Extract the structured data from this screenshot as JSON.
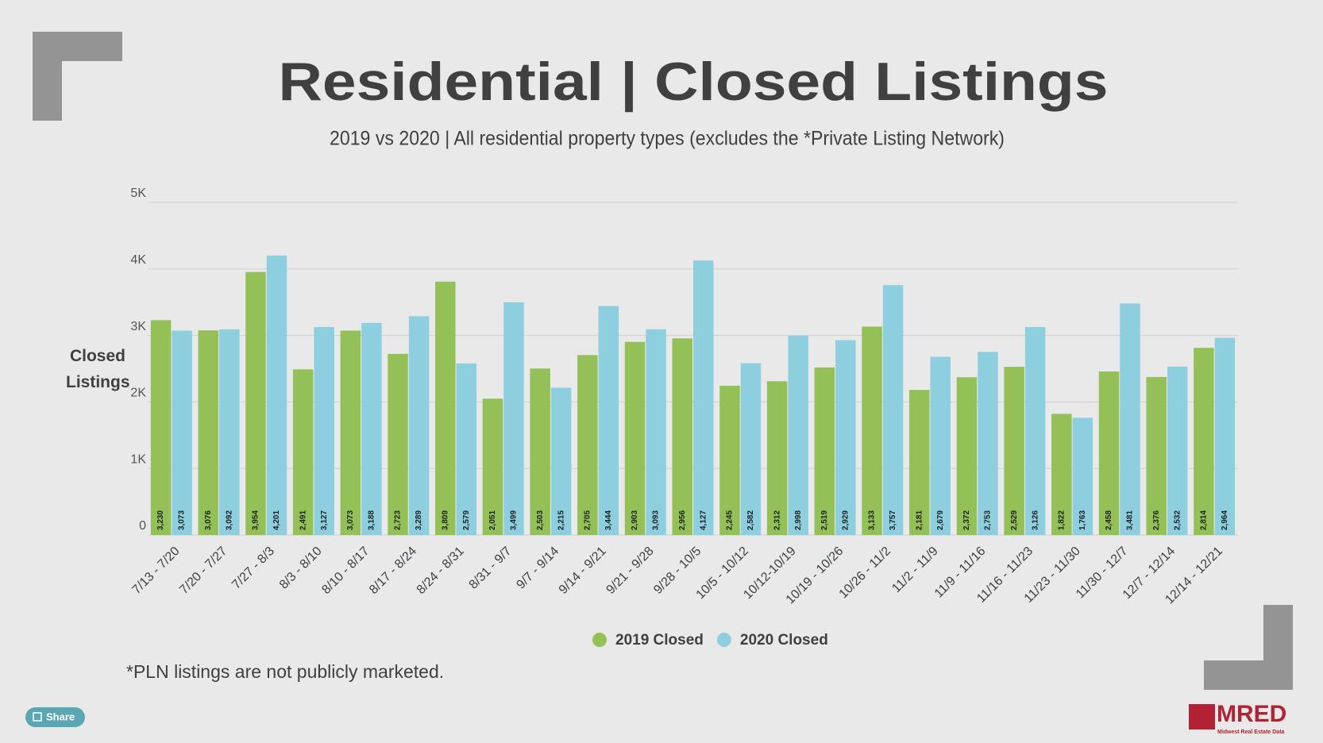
{
  "chart_data": {
    "type": "bar",
    "title": "Residential | Closed Listings",
    "subtitle": "2019 vs 2020 | All residential property types (excludes the *Private Listing Network)",
    "y_label": "Closed Listings",
    "footnote": "*PLN listings are not publicly marketed.",
    "categories": [
      "7/13 - 7/20",
      "7/20 - 7/27",
      "7/27 - 8/3",
      "8/3 - 8/10",
      "8/10 - 8/17",
      "8/17 - 8/24",
      "8/24 - 8/31",
      "8/31 - 9/7",
      "9/7 - 9/14",
      "9/14 - 9/21",
      "9/21 - 9/28",
      "9/28 - 10/5",
      "10/5 - 10/12",
      "10/12-10/19",
      "10/19 - 10/26",
      "10/26 - 11/2",
      "11/2 - 11/9",
      "11/9 - 11/16",
      "11/16 - 11/23",
      "11/23 - 11/30",
      "11/30 - 12/7",
      "12/7 - 12/14",
      "12/14 - 12/21"
    ],
    "series": [
      {
        "name": "2019 Closed",
        "color": "#93c157",
        "values": [
          3230,
          3076,
          3954,
          2491,
          3073,
          2723,
          3809,
          2051,
          2503,
          2705,
          2903,
          2956,
          2245,
          2312,
          2519,
          3133,
          2181,
          2372,
          2529,
          1822,
          2458,
          2376,
          2814
        ],
        "value_labels": [
          "3,230",
          "3,076",
          "3,954",
          "2,491",
          "3,073",
          "2,723",
          "3,809",
          "2,051",
          "2,503",
          "2,705",
          "2,903",
          "2,956",
          "2,245",
          "2,312",
          "2,519",
          "3,133",
          "2,181",
          "2,372",
          "2,529",
          "1,822",
          "2,458",
          "2,376",
          "2,814"
        ]
      },
      {
        "name": "2020 Closed",
        "color": "#8dcfdf",
        "values": [
          3073,
          3092,
          4201,
          3127,
          3188,
          3289,
          2579,
          3499,
          2215,
          3444,
          3093,
          4127,
          2582,
          2998,
          2929,
          3757,
          2679,
          2753,
          3126,
          1763,
          3481,
          2532,
          2964
        ],
        "value_labels": [
          "3,073",
          "3,092",
          "4,201",
          "3,127",
          "3,188",
          "3,289",
          "2,579",
          "3,499",
          "2,215",
          "3,444",
          "3,093",
          "4,127",
          "2,582",
          "2,998",
          "2,929",
          "3,757",
          "2,679",
          "2,753",
          "3,126",
          "1,763",
          "3,481",
          "2,532",
          "2,964"
        ]
      }
    ],
    "ylim": [
      0,
      5000
    ],
    "yticks": [
      0,
      {
        "value": 1000,
        "label": "1K"
      },
      {
        "value": 2000,
        "label": "2K"
      },
      {
        "value": 3000,
        "label": "3K"
      },
      {
        "value": 4000,
        "label": "4K"
      },
      {
        "value": 5000,
        "label": "5K"
      }
    ],
    "grid": true
  },
  "share_button": "Share",
  "logo": {
    "name": "MRED",
    "tagline": "Midwest Real Estate Data"
  }
}
